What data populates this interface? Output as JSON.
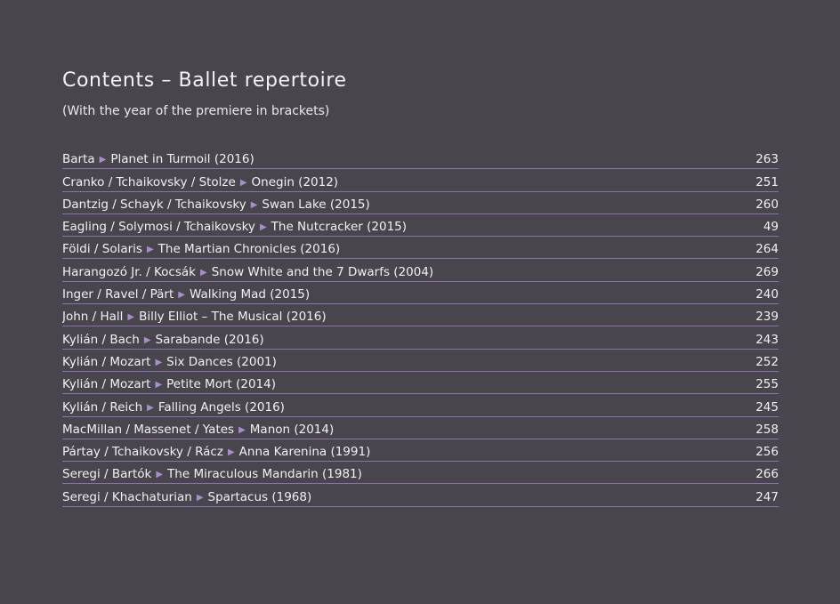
{
  "heading": {
    "title": "Contents – Ballet repertoire",
    "subtitle": "(With the year of the premiere in brackets)"
  },
  "arrow_glyph": "▶",
  "accent_color": "#8f6fb1",
  "background_color": "#48454c",
  "entries": [
    {
      "creators": "Barta",
      "work": "Planet in Turmoil (2016)",
      "page": "263"
    },
    {
      "creators": "Cranko / Tchaikovsky / Stolze",
      "work": "Onegin (2012)",
      "page": "251"
    },
    {
      "creators": "Dantzig / Schayk / Tchaikovsky",
      "work": "Swan Lake (2015)",
      "page": "260"
    },
    {
      "creators": "Eagling / Solymosi / Tchaikovsky",
      "work": "The Nutcracker (2015)",
      "page": "49"
    },
    {
      "creators": "Földi / Solaris",
      "work": "The Martian Chronicles (2016)",
      "page": "264"
    },
    {
      "creators": "Harangozó Jr. / Kocsák",
      "work": "Snow White and the 7 Dwarfs (2004)",
      "page": "269"
    },
    {
      "creators": "Inger / Ravel / Pärt",
      "work": "Walking Mad (2015)",
      "page": "240"
    },
    {
      "creators": "John / Hall",
      "work": "Billy Elliot – The Musical (2016)",
      "page": "239"
    },
    {
      "creators": "Kylián / Bach",
      "work": "Sarabande (2016)",
      "page": "243"
    },
    {
      "creators": "Kylián / Mozart",
      "work": "Six Dances (2001)",
      "page": "252"
    },
    {
      "creators": "Kylián / Mozart",
      "work": "Petite Mort (2014)",
      "page": "255"
    },
    {
      "creators": "Kylián / Reich",
      "work": "Falling Angels (2016)",
      "page": "245"
    },
    {
      "creators": "MacMillan / Massenet / Yates",
      "work": "Manon (2014)",
      "page": "258"
    },
    {
      "creators": "Pártay / Tchaikovsky / Rácz",
      "work": "Anna Karenina (1991)",
      "page": "256"
    },
    {
      "creators": "Seregi / Bartók",
      "work": "The Miraculous Mandarin (1981)",
      "page": "266"
    },
    {
      "creators": "Seregi / Khachaturian",
      "work": "Spartacus (1968)",
      "page": "247"
    }
  ]
}
